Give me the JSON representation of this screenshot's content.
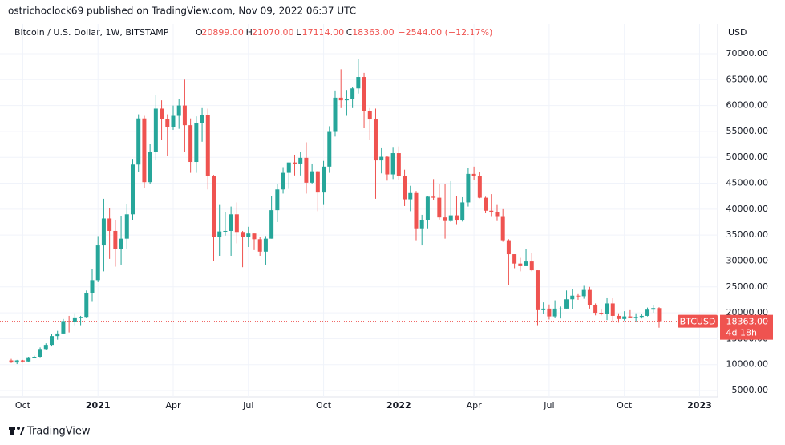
{
  "header": {
    "text": "ostrichoclock69 published on TradingView.com, Nov 09, 2022 06:37 UTC"
  },
  "footer": {
    "brand": "TradingView"
  },
  "chart_data": {
    "type": "candlestick",
    "title": "Bitcoin / U.S. Dollar, 1W, BITSTAMP",
    "legend_values": [
      {
        "label": "O",
        "value": "20899.00"
      },
      {
        "label": "H",
        "value": "21070.00"
      },
      {
        "label": "L",
        "value": "17114.00"
      },
      {
        "label": "C",
        "value": "18363.00"
      }
    ],
    "change": "−2544.00 (−12.17%)",
    "currency": "USD",
    "up_color": "#26a69a",
    "down_color": "#ef5350",
    "grid": true,
    "ylim": [
      3762,
      75720
    ],
    "yticks": [
      {
        "value": 5000,
        "label": "5000.00"
      },
      {
        "value": 10000,
        "label": "10000.00"
      },
      {
        "value": 15000,
        "label": "15000.00"
      },
      {
        "value": 20000,
        "label": "20000.00"
      },
      {
        "value": 25000,
        "label": "25000.00"
      },
      {
        "value": 30000,
        "label": "30000.00"
      },
      {
        "value": 35000,
        "label": "35000.00"
      },
      {
        "value": 40000,
        "label": "40000.00"
      },
      {
        "value": 45000,
        "label": "45000.00"
      },
      {
        "value": 50000,
        "label": "50000.00"
      },
      {
        "value": 55000,
        "label": "55000.00"
      },
      {
        "value": 60000,
        "label": "60000.00"
      },
      {
        "value": 65000,
        "label": "65000.00"
      },
      {
        "value": 70000,
        "label": "70000.00"
      }
    ],
    "last_price": {
      "symbol": "BTCUSD",
      "value": 18363,
      "label": "18363.00",
      "countdown": "4d 18h"
    },
    "categories": [
      null,
      null,
      "Oct",
      null,
      null,
      null,
      null,
      null,
      null,
      null,
      null,
      null,
      null,
      null,
      null,
      "2021",
      null,
      null,
      null,
      null,
      null,
      null,
      null,
      null,
      null,
      null,
      null,
      null,
      "Apr",
      null,
      null,
      null,
      null,
      null,
      null,
      null,
      null,
      null,
      null,
      null,
      null,
      "Jul",
      null,
      null,
      null,
      null,
      null,
      null,
      null,
      null,
      null,
      null,
      null,
      null,
      "Oct",
      null,
      null,
      null,
      null,
      null,
      null,
      null,
      null,
      null,
      null,
      null,
      null,
      "2022",
      null,
      null,
      null,
      null,
      null,
      null,
      null,
      null,
      null,
      null,
      null,
      null,
      "Apr",
      null,
      null,
      null,
      null,
      null,
      null,
      null,
      null,
      null,
      null,
      null,
      null,
      "Jul",
      null,
      null,
      null,
      null,
      null,
      null,
      null,
      null,
      null,
      null,
      null,
      null,
      "Oct",
      null,
      null,
      null,
      null,
      null,
      null,
      null,
      null,
      null,
      null,
      null,
      null,
      "2023"
    ],
    "open": [
      10800,
      10400,
      10800,
      10600,
      11400,
      11500,
      13000,
      13800,
      15500,
      16000,
      18400,
      18200,
      19100,
      19200,
      23800,
      26300,
      33000,
      38200,
      35800,
      32300,
      34300,
      39000,
      48600,
      57500,
      45200,
      51000,
      59400,
      57400,
      55800,
      58000,
      60000,
      56200,
      49100,
      56600,
      58200,
      46400,
      34700,
      35700,
      35800,
      39000,
      35600,
      34700,
      35300,
      34200,
      31800,
      34300,
      39800,
      43800,
      47000,
      49000,
      48800,
      49900,
      45100,
      47300,
      43200,
      48200,
      54900,
      61500,
      61000,
      61300,
      63300,
      65500,
      59000,
      57300,
      49400,
      50100,
      46700,
      50800,
      46400,
      41900,
      43100,
      36300,
      37900,
      42400,
      42200,
      38400,
      37700,
      38800,
      37800,
      41300,
      46800,
      46400,
      42200,
      39700,
      39500,
      38500,
      34000,
      31300,
      29500,
      29000,
      29900,
      28200,
      20500,
      20800,
      19300,
      20800,
      20800,
      22600,
      23300,
      23200,
      24400,
      21500,
      20000,
      19800,
      21800,
      19400,
      18800,
      19300,
      19100,
      19200,
      19400,
      20600,
      20899,
      null,
      null,
      null,
      null,
      null,
      null,
      null
    ],
    "high": [
      11100,
      10900,
      10900,
      11500,
      11700,
      13300,
      14100,
      15900,
      16500,
      18800,
      19400,
      19900,
      19400,
      24300,
      28400,
      34800,
      42000,
      40200,
      37900,
      38600,
      40900,
      49700,
      58300,
      58000,
      52600,
      62000,
      61000,
      58300,
      60000,
      61300,
      65000,
      57500,
      57900,
      59500,
      59400,
      46600,
      40800,
      39500,
      40500,
      41300,
      35800,
      36600,
      35300,
      34600,
      34800,
      42600,
      44800,
      48100,
      49000,
      50500,
      51000,
      52900,
      48800,
      47400,
      49300,
      56000,
      62900,
      67000,
      63000,
      63500,
      69000,
      66300,
      59500,
      59400,
      51900,
      50200,
      52000,
      52100,
      47600,
      44500,
      43500,
      38900,
      42600,
      45800,
      44800,
      44900,
      45400,
      42600,
      42300,
      47900,
      48200,
      47200,
      42400,
      42900,
      40800,
      40000,
      34200,
      31300,
      30600,
      32300,
      31600,
      28200,
      22000,
      21600,
      22400,
      21200,
      24300,
      24600,
      23600,
      25200,
      25000,
      21800,
      20600,
      22800,
      22800,
      19900,
      20300,
      20500,
      19900,
      19700,
      21000,
      21500,
      21070,
      null,
      null,
      null,
      null,
      null,
      null,
      null
    ],
    "low": [
      10300,
      10100,
      10400,
      10500,
      11200,
      11400,
      12900,
      13500,
      14800,
      15900,
      16200,
      17600,
      17600,
      19000,
      22100,
      25900,
      28000,
      30400,
      28900,
      29300,
      32300,
      37900,
      47100,
      44000,
      44900,
      49400,
      53300,
      50300,
      55300,
      55500,
      51000,
      47000,
      47000,
      53000,
      43800,
      30000,
      31000,
      34900,
      31000,
      33400,
      28800,
      32700,
      32100,
      31000,
      29300,
      34300,
      37500,
      43000,
      43900,
      46500,
      46500,
      43000,
      44800,
      39600,
      40800,
      47000,
      54000,
      59500,
      58000,
      59500,
      62300,
      55600,
      53300,
      42000,
      46900,
      45500,
      45800,
      45700,
      40600,
      39600,
      34000,
      33000,
      36300,
      41700,
      38000,
      34300,
      37500,
      37100,
      37600,
      40500,
      45600,
      42100,
      39200,
      38500,
      37700,
      33700,
      25300,
      28600,
      28000,
      29000,
      28000,
      17600,
      19700,
      18700,
      19000,
      18900,
      20800,
      20700,
      22500,
      22700,
      20800,
      19500,
      19500,
      18600,
      18300,
      18100,
      18500,
      19000,
      18200,
      18900,
      19300,
      20000,
      17114,
      null,
      null,
      null,
      null,
      null,
      null,
      null
    ],
    "close": [
      10400,
      10800,
      10600,
      11400,
      11500,
      13000,
      13800,
      15500,
      16000,
      18400,
      18200,
      19100,
      19200,
      23800,
      26300,
      33000,
      38200,
      35800,
      32300,
      34300,
      39000,
      48600,
      57500,
      45200,
      51000,
      59400,
      57400,
      55800,
      58000,
      60000,
      56200,
      49100,
      56600,
      58200,
      46400,
      34700,
      35700,
      35800,
      39000,
      35600,
      34700,
      35300,
      34200,
      31800,
      34300,
      39800,
      43800,
      47000,
      49000,
      48800,
      49900,
      45100,
      47300,
      43200,
      48200,
      54900,
      61500,
      61000,
      61300,
      63300,
      65500,
      59000,
      57300,
      49400,
      50100,
      46700,
      50800,
      46400,
      41900,
      43100,
      36300,
      37900,
      42400,
      42200,
      38400,
      37700,
      38800,
      37800,
      41300,
      46800,
      46400,
      42200,
      39700,
      39500,
      38500,
      34000,
      31300,
      29500,
      29000,
      29900,
      28200,
      20500,
      20800,
      19300,
      20800,
      20800,
      22600,
      23300,
      23200,
      24400,
      21500,
      20000,
      19800,
      21800,
      19400,
      18800,
      19300,
      19100,
      19200,
      19400,
      20600,
      20900,
      18363,
      null,
      null,
      null,
      null,
      null,
      null,
      null
    ]
  }
}
